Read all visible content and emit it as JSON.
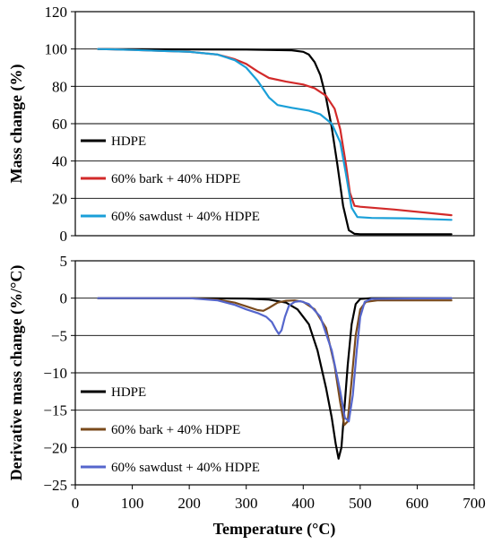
{
  "chart_data": [
    {
      "type": "line",
      "title": "",
      "xlabel": "",
      "ylabel": "Mass change (%)",
      "xlim": [
        0,
        700
      ],
      "ylim": [
        0,
        120
      ],
      "yticks": [
        0,
        20,
        40,
        60,
        80,
        100,
        120
      ],
      "grid": "horizontal",
      "legend_position": "lower-left",
      "series": [
        {
          "name": "HDPE",
          "color": "#000000",
          "points": [
            [
              40,
              100
            ],
            [
              100,
              99.9
            ],
            [
              200,
              99.8
            ],
            [
              300,
              99.7
            ],
            [
              380,
              99.3
            ],
            [
              400,
              98.5
            ],
            [
              410,
              97
            ],
            [
              420,
              93
            ],
            [
              430,
              86
            ],
            [
              440,
              74
            ],
            [
              450,
              58
            ],
            [
              460,
              38
            ],
            [
              470,
              16
            ],
            [
              480,
              3
            ],
            [
              490,
              1
            ],
            [
              500,
              0.8
            ],
            [
              560,
              0.8
            ],
            [
              660,
              0.8
            ]
          ]
        },
        {
          "name": "60% bark + 40% HDPE",
          "color": "#d22a2a",
          "points": [
            [
              40,
              100
            ],
            [
              100,
              99.5
            ],
            [
              150,
              99
            ],
            [
              200,
              98.5
            ],
            [
              250,
              97
            ],
            [
              280,
              94.5
            ],
            [
              300,
              92
            ],
            [
              320,
              88
            ],
            [
              340,
              84.5
            ],
            [
              370,
              82.5
            ],
            [
              400,
              81
            ],
            [
              420,
              79
            ],
            [
              440,
              75
            ],
            [
              455,
              68
            ],
            [
              465,
              57
            ],
            [
              475,
              38
            ],
            [
              482,
              23
            ],
            [
              490,
              16
            ],
            [
              500,
              15.5
            ],
            [
              560,
              14
            ],
            [
              660,
              11
            ]
          ]
        },
        {
          "name": "60% sawdust + 40% HDPE",
          "color": "#1a9fd8",
          "points": [
            [
              40,
              100
            ],
            [
              100,
              99.5
            ],
            [
              150,
              99
            ],
            [
              200,
              98.5
            ],
            [
              250,
              97
            ],
            [
              280,
              94
            ],
            [
              300,
              90
            ],
            [
              320,
              83
            ],
            [
              340,
              74
            ],
            [
              355,
              70
            ],
            [
              380,
              68.5
            ],
            [
              410,
              67
            ],
            [
              430,
              65
            ],
            [
              450,
              60
            ],
            [
              465,
              50
            ],
            [
              475,
              33
            ],
            [
              485,
              15
            ],
            [
              495,
              10
            ],
            [
              520,
              9.5
            ],
            [
              580,
              9.3
            ],
            [
              660,
              8.5
            ]
          ]
        }
      ]
    },
    {
      "type": "line",
      "title": "",
      "xlabel": "Temperature (°C)",
      "ylabel": "Derivative mass change (%/°C)",
      "xlim": [
        0,
        700
      ],
      "ylim": [
        -25,
        5
      ],
      "xticks": [
        0,
        100,
        200,
        300,
        400,
        500,
        600,
        700
      ],
      "yticks": [
        -25,
        -20,
        -15,
        -10,
        -5,
        0,
        5
      ],
      "grid": "horizontal",
      "legend_position": "lower-left",
      "series": [
        {
          "name": "HDPE",
          "color": "#000000",
          "points": [
            [
              40,
              0
            ],
            [
              200,
              0
            ],
            [
              300,
              -0.05
            ],
            [
              340,
              -0.2
            ],
            [
              370,
              -0.6
            ],
            [
              390,
              -1.5
            ],
            [
              410,
              -3.5
            ],
            [
              425,
              -7
            ],
            [
              440,
              -12
            ],
            [
              450,
              -16
            ],
            [
              457,
              -19.5
            ],
            [
              462,
              -21.5
            ],
            [
              467,
              -20
            ],
            [
              472,
              -15
            ],
            [
              478,
              -9
            ],
            [
              485,
              -3.5
            ],
            [
              492,
              -0.8
            ],
            [
              500,
              -0.1
            ],
            [
              520,
              0
            ],
            [
              660,
              0
            ]
          ]
        },
        {
          "name": "60% bark + 40% HDPE",
          "color": "#7a4a1c",
          "points": [
            [
              40,
              0
            ],
            [
              200,
              0
            ],
            [
              250,
              -0.2
            ],
            [
              280,
              -0.6
            ],
            [
              300,
              -1.1
            ],
            [
              320,
              -1.6
            ],
            [
              330,
              -1.7
            ],
            [
              340,
              -1.3
            ],
            [
              355,
              -0.6
            ],
            [
              370,
              -0.35
            ],
            [
              385,
              -0.3
            ],
            [
              400,
              -0.5
            ],
            [
              420,
              -1.5
            ],
            [
              440,
              -4
            ],
            [
              455,
              -9
            ],
            [
              465,
              -14
            ],
            [
              472,
              -17
            ],
            [
              478,
              -16.5
            ],
            [
              485,
              -11
            ],
            [
              492,
              -5
            ],
            [
              500,
              -1.5
            ],
            [
              510,
              -0.5
            ],
            [
              530,
              -0.3
            ],
            [
              660,
              -0.3
            ]
          ]
        },
        {
          "name": "60% sawdust + 40% HDPE",
          "color": "#5566cc",
          "points": [
            [
              40,
              0
            ],
            [
              200,
              0
            ],
            [
              250,
              -0.3
            ],
            [
              280,
              -0.9
            ],
            [
              300,
              -1.5
            ],
            [
              320,
              -2
            ],
            [
              335,
              -2.5
            ],
            [
              345,
              -3.2
            ],
            [
              352,
              -4.2
            ],
            [
              357,
              -4.8
            ],
            [
              362,
              -4.3
            ],
            [
              368,
              -2.5
            ],
            [
              375,
              -1
            ],
            [
              385,
              -0.5
            ],
            [
              395,
              -0.4
            ],
            [
              410,
              -0.8
            ],
            [
              430,
              -2.5
            ],
            [
              450,
              -7
            ],
            [
              465,
              -12.5
            ],
            [
              473,
              -16
            ],
            [
              480,
              -16.5
            ],
            [
              487,
              -13
            ],
            [
              494,
              -7
            ],
            [
              500,
              -2.5
            ],
            [
              508,
              -0.5
            ],
            [
              520,
              -0.1
            ],
            [
              660,
              0
            ]
          ]
        }
      ]
    }
  ]
}
